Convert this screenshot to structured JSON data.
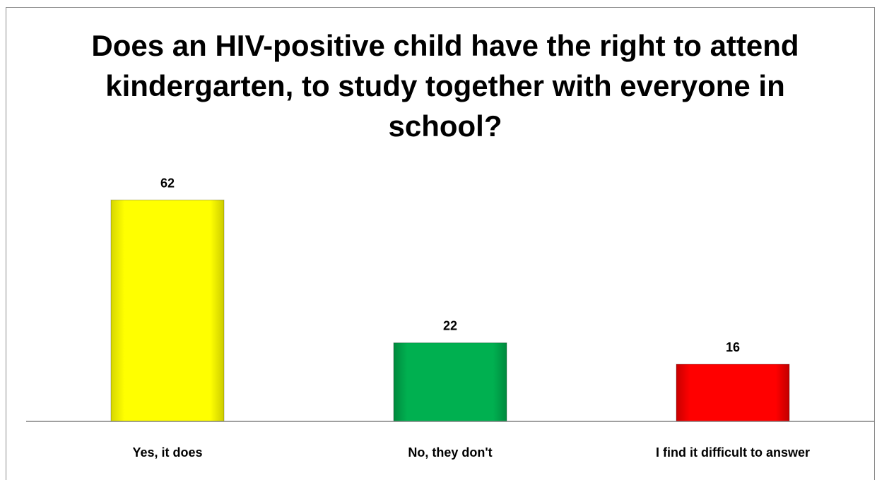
{
  "chart_data": {
    "type": "bar",
    "title": "Does an HIV-positive child have the right to attend kindergarten, to study together with everyone in school?",
    "categories": [
      "Yes, it does",
      "No, they don't",
      "I find it difficult to answer"
    ],
    "values": [
      62,
      22,
      16
    ],
    "colors": [
      "#ffff00",
      "#00b050",
      "#ff0000"
    ],
    "data_labels": [
      "62",
      "22",
      "16"
    ],
    "xlabel": "",
    "ylabel": "",
    "ylim": [
      0,
      70
    ],
    "grid": false,
    "legend": "none"
  }
}
